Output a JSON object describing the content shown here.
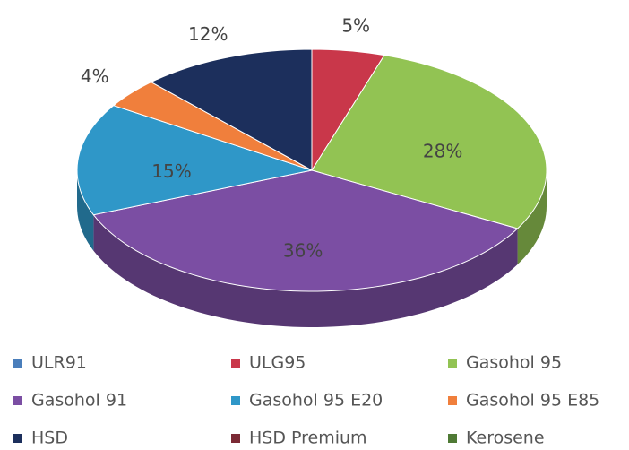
{
  "chart_data": {
    "type": "pie",
    "categories": [
      "ULR91",
      "ULG95",
      "Gasohol 95",
      "Gasohol 91",
      "Gasohol 95 E20",
      "Gasohol 95 E85",
      "HSD",
      "HSD Premium",
      "Kerosene"
    ],
    "values": [
      0,
      5,
      28,
      36,
      15,
      4,
      12,
      0,
      0
    ],
    "value_labels": [
      null,
      "5%",
      "28%",
      "36%",
      "15%",
      "4%",
      "12%",
      null,
      null
    ],
    "colors": [
      "#4a7ebb",
      "#c9374a",
      "#92c353",
      "#7b4ea3",
      "#2f97c8",
      "#f07f3c",
      "#1c2f5c",
      "#7b2a35",
      "#4f7a35"
    ],
    "legend": "bottom"
  }
}
